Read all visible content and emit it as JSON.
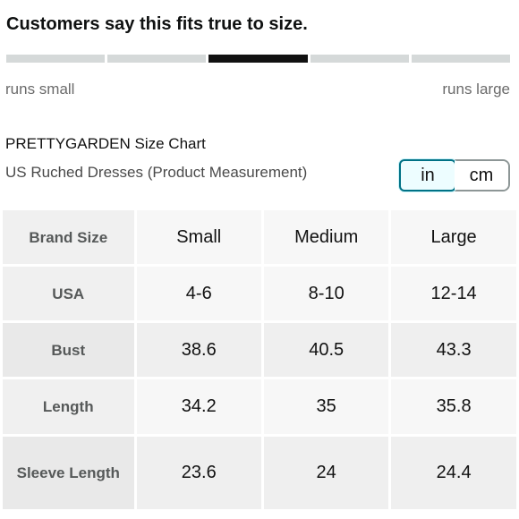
{
  "fit": {
    "heading": "Customers say this fits true to size.",
    "segments": 5,
    "active_segment": 3,
    "left_label": "runs small",
    "right_label": "runs large"
  },
  "size_chart": {
    "title": "PRETTYGARDEN Size Chart",
    "subtitle": "US Ruched Dresses (Product Measurement)",
    "units": {
      "inch": "in",
      "cm": "cm",
      "selected": "in"
    },
    "corner_label": "Brand Size",
    "sizes": [
      "Small",
      "Medium",
      "Large"
    ],
    "rows": [
      {
        "label": "USA",
        "values": [
          "4-6",
          "8-10",
          "12-14"
        ]
      },
      {
        "label": "Bust",
        "values": [
          "38.6",
          "40.5",
          "43.3"
        ]
      },
      {
        "label": "Length",
        "values": [
          "34.2",
          "35",
          "35.8"
        ]
      },
      {
        "label": "Sleeve Length",
        "values": [
          "23.6",
          "24",
          "24.4"
        ]
      }
    ]
  },
  "colors": {
    "active_segment": "#111111",
    "inactive_segment": "#d5d9d9",
    "selected_toggle_border": "#007185",
    "selected_toggle_bg": "#edfdff"
  }
}
